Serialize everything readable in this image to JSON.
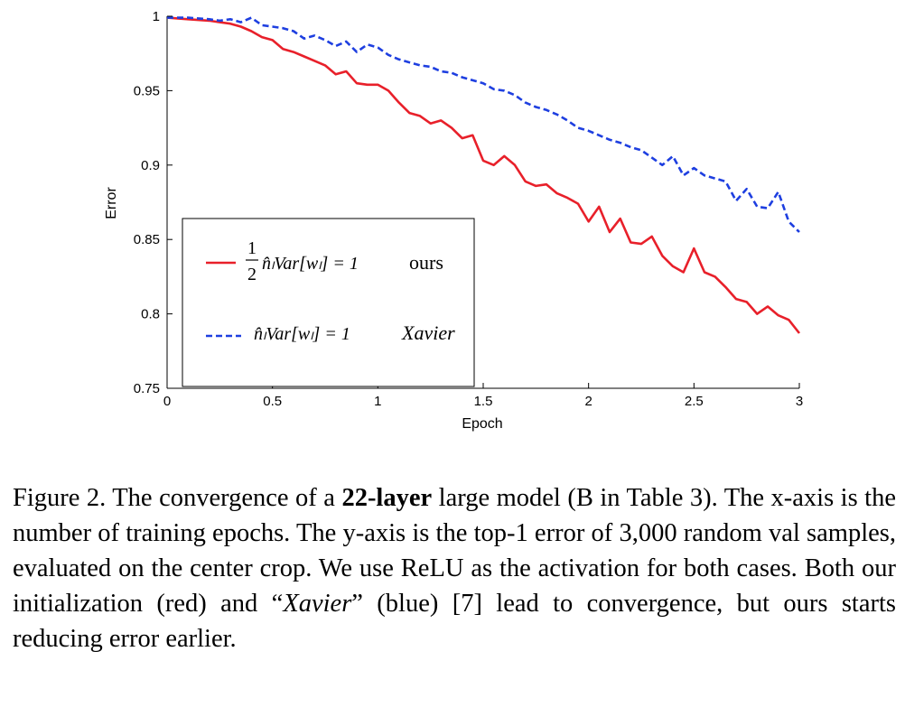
{
  "chart_data": {
    "type": "line",
    "title": "",
    "xlabel": "Epoch",
    "ylabel": "Error",
    "xlim": [
      0,
      3
    ],
    "ylim": [
      0.75,
      1
    ],
    "xticks": [
      0,
      0.5,
      1,
      1.5,
      2,
      2.5,
      3
    ],
    "xtick_labels": [
      "0",
      "0.5",
      "1",
      "1.5",
      "2",
      "2.5",
      "3"
    ],
    "yticks": [
      0.75,
      0.8,
      0.85,
      0.9,
      0.95,
      1
    ],
    "ytick_labels": [
      "0.75",
      "0.8",
      "0.85",
      "0.9",
      "0.95",
      "1"
    ],
    "grid": false,
    "legend_position": "lower-left",
    "series": [
      {
        "name": "ours",
        "legend_formula_frac_num": "1",
        "legend_formula_frac_den": "2",
        "legend_formula": "n̂ₗVar[wₗ] = 1",
        "color": "#e8202a",
        "dash": "solid",
        "x": [
          0,
          0.1,
          0.2,
          0.25,
          0.3,
          0.35,
          0.4,
          0.45,
          0.5,
          0.55,
          0.6,
          0.65,
          0.7,
          0.75,
          0.8,
          0.85,
          0.9,
          0.95,
          1.0,
          1.05,
          1.1,
          1.15,
          1.2,
          1.25,
          1.3,
          1.35,
          1.4,
          1.45,
          1.5,
          1.55,
          1.6,
          1.65,
          1.7,
          1.75,
          1.8,
          1.85,
          1.9,
          1.95,
          2.0,
          2.05,
          2.1,
          2.15,
          2.2,
          2.25,
          2.3,
          2.35,
          2.4,
          2.45,
          2.5,
          2.55,
          2.6,
          2.65,
          2.7,
          2.75,
          2.8,
          2.85,
          2.9,
          2.95,
          3.0
        ],
        "values": [
          0.999,
          0.998,
          0.997,
          0.996,
          0.995,
          0.993,
          0.99,
          0.986,
          0.984,
          0.978,
          0.976,
          0.973,
          0.97,
          0.967,
          0.961,
          0.963,
          0.955,
          0.954,
          0.954,
          0.95,
          0.942,
          0.935,
          0.933,
          0.928,
          0.93,
          0.925,
          0.918,
          0.92,
          0.903,
          0.9,
          0.906,
          0.9,
          0.889,
          0.886,
          0.887,
          0.881,
          0.878,
          0.874,
          0.862,
          0.872,
          0.855,
          0.864,
          0.848,
          0.847,
          0.852,
          0.839,
          0.832,
          0.828,
          0.844,
          0.828,
          0.825,
          0.818,
          0.81,
          0.808,
          0.8,
          0.805,
          0.799,
          0.796,
          0.787
        ]
      },
      {
        "name": "Xavier",
        "legend_formula": "n̂ₗVar[wₗ] = 1",
        "color": "#1e3fe0",
        "dash": "dashed",
        "x": [
          0,
          0.1,
          0.2,
          0.25,
          0.3,
          0.35,
          0.4,
          0.45,
          0.5,
          0.55,
          0.6,
          0.65,
          0.7,
          0.75,
          0.8,
          0.85,
          0.9,
          0.95,
          1.0,
          1.05,
          1.1,
          1.15,
          1.2,
          1.25,
          1.3,
          1.35,
          1.4,
          1.45,
          1.5,
          1.55,
          1.6,
          1.65,
          1.7,
          1.75,
          1.8,
          1.85,
          1.9,
          1.95,
          2.0,
          2.05,
          2.1,
          2.15,
          2.2,
          2.25,
          2.3,
          2.35,
          2.4,
          2.45,
          2.5,
          2.55,
          2.6,
          2.65,
          2.7,
          2.75,
          2.8,
          2.85,
          2.9,
          2.95,
          3.0
        ],
        "values": [
          0.999,
          0.999,
          0.998,
          0.997,
          0.998,
          0.996,
          0.999,
          0.994,
          0.993,
          0.992,
          0.99,
          0.985,
          0.987,
          0.984,
          0.98,
          0.983,
          0.976,
          0.981,
          0.979,
          0.974,
          0.971,
          0.969,
          0.967,
          0.966,
          0.963,
          0.962,
          0.959,
          0.957,
          0.955,
          0.951,
          0.95,
          0.947,
          0.942,
          0.939,
          0.937,
          0.934,
          0.93,
          0.925,
          0.923,
          0.92,
          0.917,
          0.915,
          0.912,
          0.91,
          0.905,
          0.9,
          0.906,
          0.893,
          0.898,
          0.893,
          0.891,
          0.889,
          0.876,
          0.884,
          0.872,
          0.871,
          0.882,
          0.862,
          0.855
        ]
      }
    ]
  },
  "caption": {
    "prefix": "Figure 2. The convergence of a ",
    "bold": "22-layer",
    "mid": " large model (B in Table 3). The x-axis is the number of training epochs. The y-axis is the top-1 error of 3,000 random val samples, evaluated on the center crop. We use ReLU as the activation for both cases. Both our initialization (red) and “",
    "italic": "Xavier",
    "suffix": "” (blue) [7] lead to convergence, but ours starts reducing error earlier."
  }
}
